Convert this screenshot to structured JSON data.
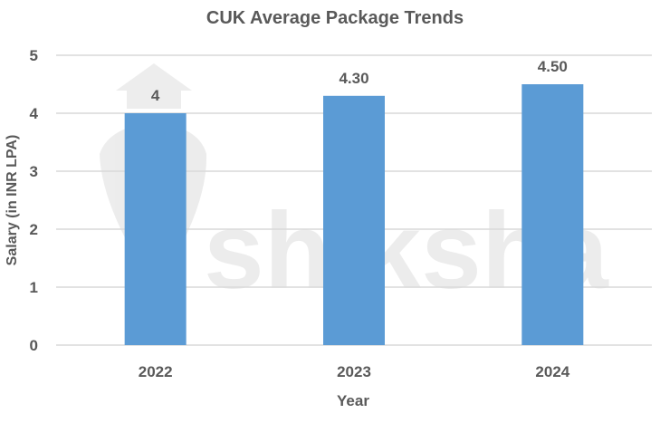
{
  "chart_data": {
    "type": "bar",
    "title": "CUK Average Package Trends",
    "xlabel": "Year",
    "ylabel": "Salary (in INR LPA)",
    "categories": [
      "2022",
      "2023",
      "2024"
    ],
    "values": [
      4,
      4.3,
      4.5
    ],
    "data_labels": [
      "4",
      "4.30",
      "4.50"
    ],
    "ylim": [
      0,
      5
    ],
    "yticks": [
      "0",
      "1",
      "2",
      "3",
      "4",
      "5"
    ],
    "grid": true,
    "legend": "none",
    "bar_color": "#5B9BD5",
    "watermark": "shiksha"
  }
}
